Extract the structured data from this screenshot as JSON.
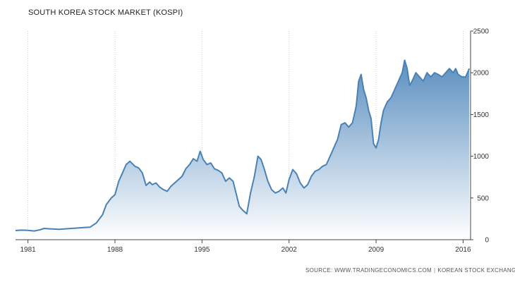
{
  "chart_data": {
    "type": "area",
    "title": "SOUTH KOREA STOCK MARKET (KOSPI)",
    "xlabel": "",
    "ylabel": "",
    "xlim": [
      1980.0,
      2016.6
    ],
    "ylim": [
      0,
      2500
    ],
    "x_ticks": [
      1981,
      1988,
      1995,
      2002,
      2009,
      2016
    ],
    "x_tick_labels": [
      "1981",
      "1988",
      "1995",
      "2002",
      "2009",
      "2016"
    ],
    "y_ticks": [
      0,
      500,
      1000,
      1500,
      2000,
      2500
    ],
    "y_tick_labels": [
      "0",
      "500",
      "1000",
      "1500",
      "2000",
      "2500"
    ],
    "y_axis_side": "right",
    "grid": "vertical-dotted",
    "series": [
      {
        "x": [
          1980.0,
          1980.5,
          1981.0,
          1981.5,
          1982.0,
          1982.3,
          1982.8,
          1983.5,
          1984.0,
          1984.5,
          1985.0,
          1985.5,
          1986.0,
          1986.5,
          1987.0,
          1987.3,
          1987.7,
          1988.0,
          1988.3,
          1988.6,
          1988.9,
          1989.2,
          1989.4,
          1989.6,
          1989.9,
          1990.2,
          1990.5,
          1990.8,
          1991.0,
          1991.3,
          1991.6,
          1991.9,
          1992.2,
          1992.5,
          1992.8,
          1993.1,
          1993.4,
          1993.7,
          1994.0,
          1994.3,
          1994.6,
          1994.85,
          1995.1,
          1995.4,
          1995.7,
          1996.0,
          1996.3,
          1996.6,
          1996.9,
          1997.2,
          1997.5,
          1997.75,
          1998.0,
          1998.3,
          1998.6,
          1998.9,
          1999.2,
          1999.5,
          1999.75,
          2000.0,
          2000.3,
          2000.6,
          2000.9,
          2001.2,
          2001.5,
          2001.75,
          2002.0,
          2002.3,
          2002.6,
          2002.9,
          2003.2,
          2003.5,
          2003.8,
          2004.1,
          2004.4,
          2004.7,
          2005.0,
          2005.3,
          2005.6,
          2005.9,
          2006.2,
          2006.5,
          2006.8,
          2007.1,
          2007.4,
          2007.6,
          2007.8,
          2008.0,
          2008.2,
          2008.4,
          2008.6,
          2008.8,
          2009.0,
          2009.2,
          2009.4,
          2009.6,
          2009.9,
          2010.2,
          2010.5,
          2010.8,
          2011.1,
          2011.3,
          2011.5,
          2011.7,
          2011.9,
          2012.2,
          2012.5,
          2012.8,
          2013.1,
          2013.4,
          2013.7,
          2014.0,
          2014.3,
          2014.6,
          2014.9,
          2015.2,
          2015.4,
          2015.6,
          2015.9,
          2016.2,
          2016.5
        ],
        "y": [
          110,
          115,
          112,
          105,
          120,
          135,
          130,
          125,
          130,
          135,
          140,
          145,
          150,
          200,
          300,
          420,
          500,
          540,
          700,
          800,
          900,
          940,
          910,
          880,
          860,
          800,
          650,
          690,
          660,
          680,
          630,
          600,
          580,
          640,
          680,
          720,
          760,
          850,
          900,
          970,
          940,
          1060,
          960,
          900,
          920,
          850,
          830,
          800,
          700,
          740,
          700,
          550,
          400,
          350,
          310,
          560,
          750,
          1000,
          960,
          850,
          700,
          600,
          560,
          580,
          620,
          560,
          720,
          840,
          790,
          680,
          620,
          660,
          760,
          820,
          840,
          880,
          900,
          1000,
          1100,
          1200,
          1380,
          1400,
          1350,
          1400,
          1600,
          1900,
          1980,
          1800,
          1700,
          1550,
          1450,
          1150,
          1100,
          1200,
          1400,
          1550,
          1650,
          1700,
          1800,
          1900,
          2000,
          2150,
          2050,
          1850,
          1900,
          2000,
          1950,
          1900,
          2000,
          1950,
          2000,
          1980,
          1950,
          2000,
          2050,
          2000,
          2050,
          1980,
          1950,
          1950,
          2050
        ]
      }
    ],
    "colors": {
      "line": "#4a82b5",
      "fill_top": "#5b8fc0",
      "fill_bottom": "#ffffff",
      "grid": "#cccccc",
      "axis": "#444444"
    }
  },
  "source": {
    "prefix": "SOURCE: WWW.TRADINGECONOMICS.COM",
    "suffix": "KOREAN STOCK EXCHANGE"
  }
}
